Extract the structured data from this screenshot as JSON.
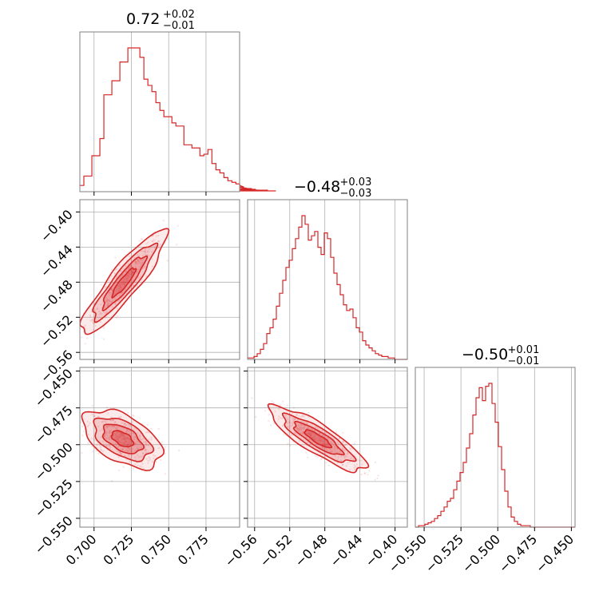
{
  "chart_data": [
    {
      "type": "histogram",
      "panel": "diag-0",
      "title": {
        "median": "0.72",
        "plus": "+0.02",
        "minus": "−0.01"
      },
      "x_range": [
        0.6905,
        0.7975
      ],
      "x_ticks": [
        {
          "value": 0.7,
          "label": "0.700"
        },
        {
          "value": 0.725,
          "label": "0.725"
        },
        {
          "value": 0.75,
          "label": "0.750"
        },
        {
          "value": 0.775,
          "label": "0.775"
        }
      ],
      "grid": true,
      "bin_edges_start": 0.6905,
      "bin_width": 0.00268,
      "counts": [
        0.04,
        0.1,
        0.1,
        0.23,
        0.23,
        0.34,
        0.62,
        0.62,
        0.71,
        0.71,
        0.83,
        0.83,
        0.92,
        0.92,
        0.92,
        0.86,
        0.72,
        0.68,
        0.64,
        0.57,
        0.52,
        0.48,
        0.48,
        0.44,
        0.42,
        0.42,
        0.3,
        0.3,
        0.28,
        0.28,
        0.23,
        0.24,
        0.27,
        0.18,
        0.14,
        0.12,
        0.09,
        0.07,
        0.06,
        0.05,
        0.04,
        0.03,
        0.02,
        0.02,
        0.015,
        0.01,
        0.01,
        0.01,
        0.005,
        0.005
      ],
      "color": "#d62728"
    },
    {
      "type": "histogram",
      "panel": "diag-1",
      "title": {
        "median": "−0.48",
        "plus": "+0.03",
        "minus": "−0.03"
      },
      "x_range": [
        -0.568,
        -0.386
      ],
      "x_ticks": [
        {
          "value": -0.56,
          "label": "−0.56"
        },
        {
          "value": -0.52,
          "label": "−0.52"
        },
        {
          "value": -0.48,
          "label": "−0.48"
        },
        {
          "value": -0.44,
          "label": "−0.44"
        },
        {
          "value": -0.4,
          "label": "−0.40"
        }
      ],
      "grid": true,
      "bin_edges_start": -0.568,
      "bin_width": 0.00364,
      "counts": [
        0.01,
        0.01,
        0.02,
        0.04,
        0.07,
        0.11,
        0.18,
        0.22,
        0.28,
        0.37,
        0.46,
        0.55,
        0.64,
        0.69,
        0.77,
        0.84,
        0.92,
        1.0,
        0.94,
        0.83,
        0.86,
        0.89,
        0.78,
        0.73,
        0.88,
        0.84,
        0.71,
        0.6,
        0.52,
        0.45,
        0.38,
        0.34,
        0.35,
        0.29,
        0.22,
        0.19,
        0.13,
        0.1,
        0.08,
        0.06,
        0.04,
        0.03,
        0.02,
        0.02,
        0.01,
        0.01,
        0.0,
        0.0,
        0.0,
        0.0
      ],
      "color": "#d62728"
    },
    {
      "type": "histogram",
      "panel": "diag-2",
      "title": {
        "median": "−0.50",
        "plus": "+0.01",
        "minus": "−0.01"
      },
      "x_range": [
        -0.556,
        -0.4475
      ],
      "x_ticks": [
        {
          "value": -0.55,
          "label": "−0.550"
        },
        {
          "value": -0.525,
          "label": "−0.525"
        },
        {
          "value": -0.5,
          "label": "−0.500"
        },
        {
          "value": -0.475,
          "label": "−0.475"
        },
        {
          "value": -0.45,
          "label": "−0.450"
        }
      ],
      "grid": true,
      "bin_edges_start": -0.556,
      "bin_width": 0.00217,
      "counts": [
        0.0,
        0.01,
        0.01,
        0.02,
        0.03,
        0.04,
        0.06,
        0.08,
        0.11,
        0.14,
        0.18,
        0.2,
        0.26,
        0.32,
        0.38,
        0.45,
        0.55,
        0.65,
        0.78,
        0.9,
        0.97,
        0.88,
        0.98,
        1.0,
        0.86,
        0.73,
        0.56,
        0.4,
        0.25,
        0.14,
        0.07,
        0.04,
        0.02,
        0.01,
        0.01,
        0.01,
        0.0,
        0.0,
        0.0,
        0.0,
        0.0,
        0.0,
        0.0,
        0.0,
        0.0,
        0.0,
        0.0,
        0.0,
        0.0,
        0.0
      ],
      "color": "#d62728"
    },
    {
      "type": "scatter",
      "panel": "pair-1-0",
      "x_range": [
        0.6905,
        0.7975
      ],
      "y_range": [
        -0.568,
        -0.386
      ],
      "y_ticks": [
        {
          "value": -0.4,
          "label": "−0.40"
        },
        {
          "value": -0.44,
          "label": "−0.44"
        },
        {
          "value": -0.48,
          "label": "−0.48"
        },
        {
          "value": -0.52,
          "label": "−0.52"
        },
        {
          "value": -0.56,
          "label": "−0.56"
        }
      ],
      "grid": true,
      "mean": [
        0.72,
        -0.48
      ],
      "sd": [
        0.013,
        0.027
      ],
      "corr": 0.9,
      "color": "#d62728"
    },
    {
      "type": "scatter",
      "panel": "pair-2-0",
      "x_range": [
        0.6905,
        0.7975
      ],
      "y_range": [
        -0.556,
        -0.4475
      ],
      "y_ticks": [
        {
          "value": -0.45,
          "label": "−0.450"
        },
        {
          "value": -0.475,
          "label": "−0.475"
        },
        {
          "value": -0.5,
          "label": "−0.500"
        },
        {
          "value": -0.525,
          "label": "−0.525"
        },
        {
          "value": -0.55,
          "label": "−0.550"
        }
      ],
      "grid": true,
      "mean": [
        0.719,
        -0.496
      ],
      "sd": [
        0.012,
        0.009
      ],
      "corr": -0.5,
      "color": "#d62728"
    },
    {
      "type": "scatter",
      "panel": "pair-2-1",
      "x_range": [
        -0.568,
        -0.386
      ],
      "y_range": [
        -0.556,
        -0.4475
      ],
      "grid": true,
      "mean": [
        -0.488,
        -0.496
      ],
      "sd": [
        0.025,
        0.01
      ],
      "corr": -0.85,
      "color": "#d62728"
    }
  ]
}
